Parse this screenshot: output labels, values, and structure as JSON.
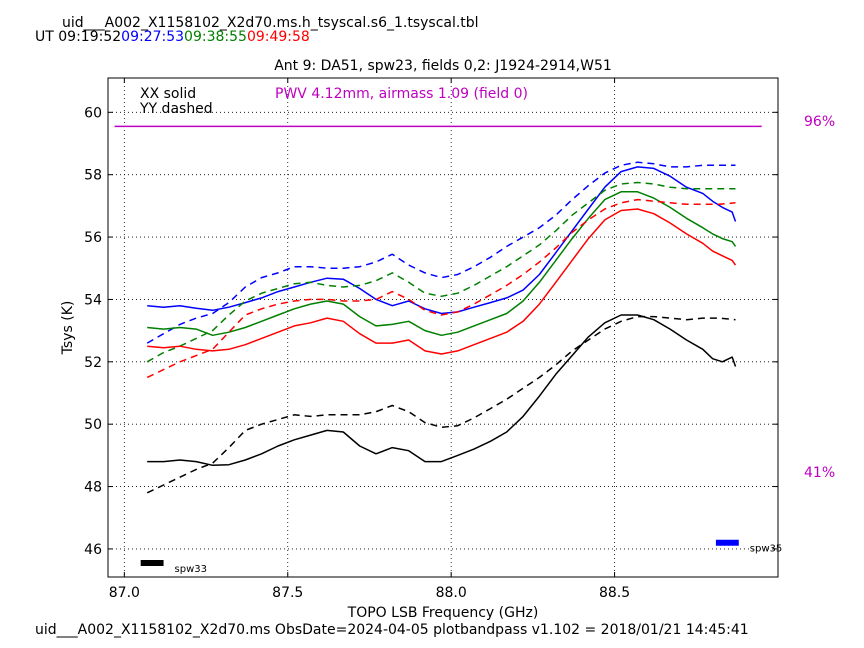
{
  "header": {
    "filename": "uid___A002_X1158102_X2d70.ms.h_tsyscal.s6_1.tsyscal.tbl",
    "ut_label": "UT",
    "times": [
      {
        "text": "09:19:52",
        "color": "#000000"
      },
      {
        "text": "09:27:53",
        "color": "#0000ff"
      },
      {
        "text": "09:38:55",
        "color": "#008000"
      },
      {
        "text": "09:49:58",
        "color": "#ff0000"
      }
    ]
  },
  "footer": {
    "text": "uid___A002_X1158102_X2d70.ms  ObsDate=2024-04-05   plotbandpass v1.102 = 2018/01/21 14:45:41"
  },
  "chart_data": {
    "type": "line",
    "title": "Ant 9: DA51,  spw23,  fields 0,2: J1924-2914,W51",
    "xlabel": "TOPO LSB Frequency (GHz)",
    "ylabel": "Tsys (K)",
    "xlim": [
      86.95,
      89.0
    ],
    "ylim": [
      45.1,
      61.1
    ],
    "xticks": [
      "87.0",
      "87.5",
      "88.0",
      "88.5"
    ],
    "xtick_values": [
      87.0,
      87.5,
      88.0,
      88.5
    ],
    "yticks": [
      "46",
      "48",
      "50",
      "52",
      "54",
      "56",
      "58",
      "60"
    ],
    "ytick_values": [
      46,
      48,
      50,
      52,
      54,
      56,
      58,
      60
    ],
    "grid": true,
    "legend_text": [
      "XX solid",
      "YY dashed"
    ],
    "pwv_text": "PWV 4.12mm, airmass 1.09 (field 0)",
    "pwv_color": "#c000c0",
    "transmission_labels": [
      "96%",
      "41%"
    ],
    "transmission_line": {
      "y": 59.55,
      "x": [
        86.97,
        88.95
      ],
      "color": "#c000c0"
    },
    "spw_markers": [
      {
        "label": "spw33",
        "color": "#000000",
        "x": [
          87.05,
          87.12
        ],
        "y": 45.55
      },
      {
        "label": "spw35",
        "color": "#0000ff",
        "x": [
          88.81,
          88.88
        ],
        "y": 46.2
      }
    ],
    "series": [
      {
        "color": "#0000ff",
        "style": "solid",
        "x": [
          87.07,
          87.12,
          87.17,
          87.22,
          87.27,
          87.32,
          87.37,
          87.42,
          87.47,
          87.52,
          87.57,
          87.62,
          87.67,
          87.72,
          87.77,
          87.82,
          87.87,
          87.92,
          87.97,
          88.02,
          88.07,
          88.12,
          88.17,
          88.22,
          88.27,
          88.32,
          88.37,
          88.42,
          88.47,
          88.52,
          88.57,
          88.62,
          88.67,
          88.72,
          88.77,
          88.8,
          88.83,
          88.86,
          88.87
        ],
        "y": [
          53.8,
          53.75,
          53.8,
          53.72,
          53.65,
          53.75,
          53.9,
          54.05,
          54.25,
          54.4,
          54.55,
          54.68,
          54.65,
          54.35,
          54.0,
          53.8,
          53.95,
          53.7,
          53.55,
          53.6,
          53.75,
          53.9,
          54.05,
          54.3,
          54.8,
          55.5,
          56.2,
          56.9,
          57.6,
          58.1,
          58.25,
          58.2,
          57.95,
          57.6,
          57.4,
          57.15,
          56.95,
          56.8,
          56.5
        ]
      },
      {
        "color": "#0000ff",
        "style": "dashed",
        "x": [
          87.07,
          87.12,
          87.17,
          87.22,
          87.27,
          87.32,
          87.37,
          87.42,
          87.47,
          87.52,
          87.57,
          87.62,
          87.67,
          87.72,
          87.77,
          87.82,
          87.87,
          87.92,
          87.97,
          88.02,
          88.07,
          88.12,
          88.17,
          88.22,
          88.27,
          88.32,
          88.37,
          88.42,
          88.47,
          88.52,
          88.57,
          88.62,
          88.67,
          88.72,
          88.77,
          88.82,
          88.87
        ],
        "y": [
          52.6,
          52.9,
          53.2,
          53.4,
          53.55,
          53.9,
          54.4,
          54.7,
          54.85,
          55.05,
          55.05,
          55.0,
          55.0,
          55.05,
          55.2,
          55.45,
          55.1,
          54.85,
          54.7,
          54.8,
          55.05,
          55.35,
          55.7,
          56.0,
          56.3,
          56.7,
          57.2,
          57.65,
          58.05,
          58.3,
          58.4,
          58.35,
          58.25,
          58.25,
          58.3,
          58.3,
          58.3
        ]
      },
      {
        "color": "#008000",
        "style": "solid",
        "x": [
          87.07,
          87.12,
          87.17,
          87.22,
          87.27,
          87.32,
          87.37,
          87.42,
          87.47,
          87.52,
          87.57,
          87.62,
          87.67,
          87.72,
          87.77,
          87.82,
          87.87,
          87.92,
          87.97,
          88.02,
          88.07,
          88.12,
          88.17,
          88.22,
          88.27,
          88.32,
          88.37,
          88.42,
          88.47,
          88.52,
          88.57,
          88.62,
          88.67,
          88.72,
          88.77,
          88.8,
          88.83,
          88.86,
          88.87
        ],
        "y": [
          53.1,
          53.05,
          53.1,
          53.05,
          52.85,
          52.95,
          53.1,
          53.3,
          53.5,
          53.7,
          53.85,
          53.95,
          53.85,
          53.45,
          53.15,
          53.2,
          53.3,
          53.0,
          52.85,
          52.95,
          53.15,
          53.35,
          53.55,
          53.95,
          54.55,
          55.25,
          55.95,
          56.6,
          57.2,
          57.45,
          57.45,
          57.25,
          56.95,
          56.6,
          56.3,
          56.1,
          55.95,
          55.85,
          55.7
        ]
      },
      {
        "color": "#008000",
        "style": "dashed",
        "x": [
          87.07,
          87.12,
          87.17,
          87.22,
          87.27,
          87.32,
          87.37,
          87.42,
          87.47,
          87.52,
          87.57,
          87.62,
          87.67,
          87.72,
          87.77,
          87.82,
          87.87,
          87.92,
          87.97,
          88.02,
          88.07,
          88.12,
          88.17,
          88.22,
          88.27,
          88.32,
          88.37,
          88.42,
          88.47,
          88.52,
          88.57,
          88.62,
          88.67,
          88.72,
          88.77,
          88.82,
          88.87
        ],
        "y": [
          52.0,
          52.3,
          52.5,
          52.75,
          53.0,
          53.5,
          53.95,
          54.2,
          54.35,
          54.5,
          54.55,
          54.45,
          54.4,
          54.45,
          54.6,
          54.85,
          54.55,
          54.2,
          54.1,
          54.2,
          54.45,
          54.75,
          55.05,
          55.4,
          55.75,
          56.2,
          56.7,
          57.1,
          57.5,
          57.7,
          57.75,
          57.7,
          57.6,
          57.55,
          57.55,
          57.55,
          57.55
        ]
      },
      {
        "color": "#ff0000",
        "style": "solid",
        "x": [
          87.07,
          87.12,
          87.17,
          87.22,
          87.27,
          87.32,
          87.37,
          87.42,
          87.47,
          87.52,
          87.57,
          87.62,
          87.67,
          87.72,
          87.77,
          87.82,
          87.87,
          87.92,
          87.97,
          88.02,
          88.07,
          88.12,
          88.17,
          88.22,
          88.27,
          88.32,
          88.37,
          88.42,
          88.47,
          88.52,
          88.57,
          88.62,
          88.67,
          88.72,
          88.77,
          88.8,
          88.83,
          88.86,
          88.87
        ],
        "y": [
          52.5,
          52.45,
          52.5,
          52.4,
          52.35,
          52.4,
          52.55,
          52.75,
          52.95,
          53.15,
          53.25,
          53.4,
          53.3,
          52.9,
          52.6,
          52.6,
          52.7,
          52.35,
          52.25,
          52.35,
          52.55,
          52.75,
          52.95,
          53.3,
          53.85,
          54.55,
          55.25,
          55.95,
          56.55,
          56.85,
          56.9,
          56.75,
          56.45,
          56.1,
          55.8,
          55.55,
          55.4,
          55.25,
          55.1
        ]
      },
      {
        "color": "#ff0000",
        "style": "dashed",
        "x": [
          87.07,
          87.12,
          87.17,
          87.22,
          87.27,
          87.32,
          87.37,
          87.42,
          87.47,
          87.52,
          87.57,
          87.62,
          87.67,
          87.72,
          87.77,
          87.82,
          87.87,
          87.92,
          87.97,
          88.02,
          88.07,
          88.12,
          88.17,
          88.22,
          88.27,
          88.32,
          88.37,
          88.42,
          88.47,
          88.52,
          88.57,
          88.62,
          88.67,
          88.72,
          88.77,
          88.82,
          88.87
        ],
        "y": [
          51.5,
          51.75,
          52.0,
          52.2,
          52.4,
          52.95,
          53.5,
          53.7,
          53.85,
          53.95,
          54.0,
          54.0,
          53.95,
          53.95,
          54.0,
          54.25,
          54.0,
          53.65,
          53.5,
          53.6,
          53.85,
          54.15,
          54.45,
          54.8,
          55.2,
          55.65,
          56.15,
          56.55,
          56.9,
          57.1,
          57.2,
          57.15,
          57.1,
          57.05,
          57.05,
          57.05,
          57.1
        ]
      },
      {
        "color": "#000000",
        "style": "solid",
        "x": [
          87.07,
          87.12,
          87.17,
          87.22,
          87.27,
          87.32,
          87.37,
          87.42,
          87.47,
          87.52,
          87.57,
          87.62,
          87.67,
          87.72,
          87.77,
          87.82,
          87.87,
          87.92,
          87.97,
          88.02,
          88.07,
          88.12,
          88.17,
          88.22,
          88.27,
          88.32,
          88.37,
          88.42,
          88.47,
          88.52,
          88.57,
          88.62,
          88.67,
          88.72,
          88.77,
          88.8,
          88.83,
          88.86,
          88.87
        ],
        "y": [
          48.8,
          48.8,
          48.85,
          48.8,
          48.68,
          48.7,
          48.85,
          49.05,
          49.3,
          49.5,
          49.65,
          49.8,
          49.75,
          49.3,
          49.05,
          49.25,
          49.15,
          48.8,
          48.8,
          49.0,
          49.2,
          49.45,
          49.75,
          50.25,
          50.9,
          51.6,
          52.2,
          52.8,
          53.25,
          53.5,
          53.5,
          53.35,
          53.05,
          52.7,
          52.4,
          52.1,
          52.0,
          52.15,
          51.85
        ]
      },
      {
        "color": "#000000",
        "style": "dashed",
        "x": [
          87.07,
          87.12,
          87.17,
          87.22,
          87.27,
          87.32,
          87.37,
          87.42,
          87.47,
          87.52,
          87.57,
          87.62,
          87.67,
          87.72,
          87.77,
          87.82,
          87.87,
          87.92,
          87.97,
          88.02,
          88.07,
          88.12,
          88.17,
          88.22,
          88.27,
          88.32,
          88.37,
          88.42,
          88.47,
          88.52,
          88.57,
          88.62,
          88.67,
          88.72,
          88.77,
          88.82,
          88.87
        ],
        "y": [
          47.8,
          48.05,
          48.3,
          48.55,
          48.75,
          49.25,
          49.8,
          50.0,
          50.15,
          50.3,
          50.25,
          50.3,
          50.3,
          50.3,
          50.4,
          50.6,
          50.4,
          50.05,
          49.9,
          49.95,
          50.2,
          50.5,
          50.8,
          51.15,
          51.5,
          51.9,
          52.35,
          52.7,
          53.05,
          53.3,
          53.45,
          53.45,
          53.4,
          53.35,
          53.4,
          53.4,
          53.35
        ]
      }
    ]
  }
}
